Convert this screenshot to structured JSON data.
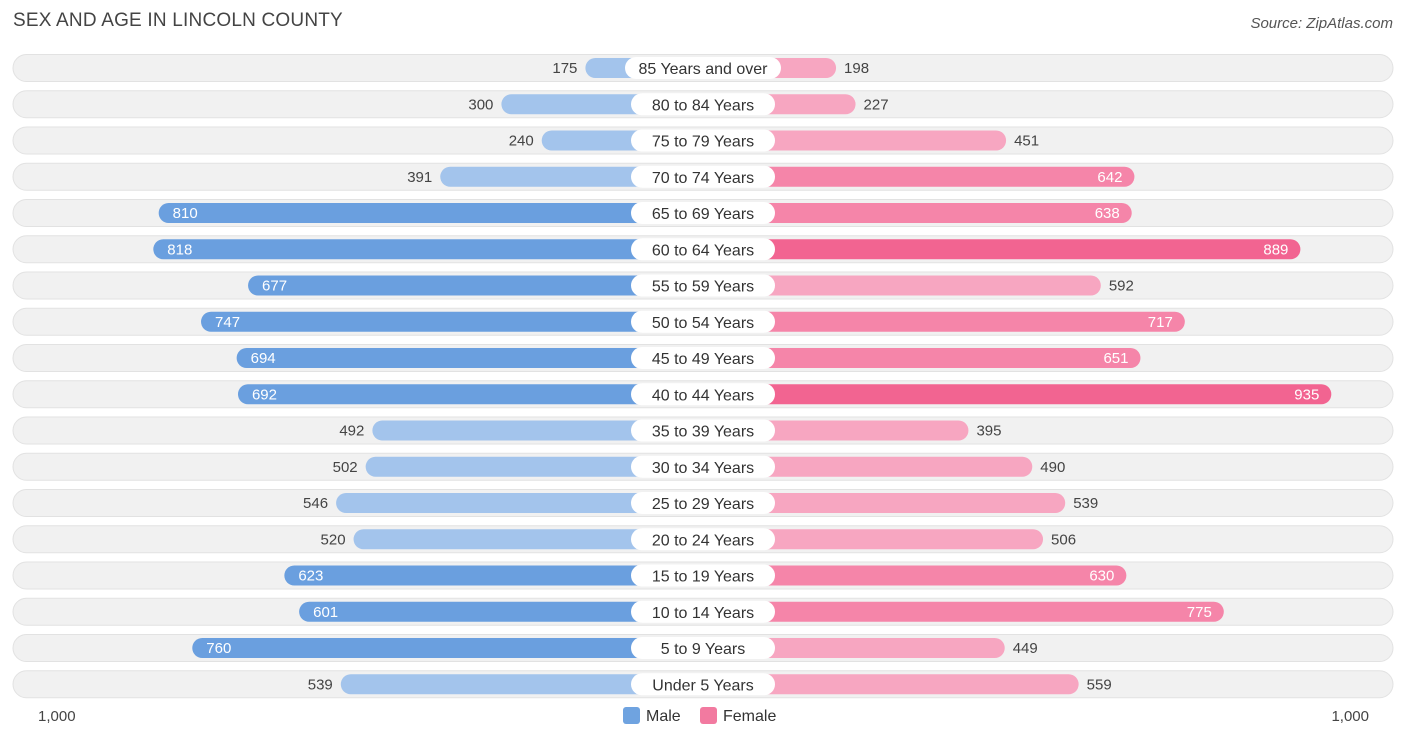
{
  "chart_data": {
    "type": "bar",
    "orientation": "horizontal-diverging",
    "title": "SEX AND AGE IN LINCOLN COUNTY",
    "source": "Source: ZipAtlas.com",
    "categories": [
      "85 Years and over",
      "80 to 84 Years",
      "75 to 79 Years",
      "70 to 74 Years",
      "65 to 69 Years",
      "60 to 64 Years",
      "55 to 59 Years",
      "50 to 54 Years",
      "45 to 49 Years",
      "40 to 44 Years",
      "35 to 39 Years",
      "30 to 34 Years",
      "25 to 29 Years",
      "20 to 24 Years",
      "15 to 19 Years",
      "10 to 14 Years",
      "5 to 9 Years",
      "Under 5 Years"
    ],
    "series": [
      {
        "name": "Male",
        "color": "#6fa3e0",
        "values": [
          175,
          300,
          240,
          391,
          810,
          818,
          677,
          747,
          694,
          692,
          492,
          502,
          546,
          520,
          623,
          601,
          760,
          539
        ]
      },
      {
        "name": "Female",
        "color": "#f27aa0",
        "values": [
          198,
          227,
          451,
          642,
          638,
          889,
          592,
          717,
          651,
          935,
          395,
          490,
          539,
          506,
          630,
          775,
          449,
          559
        ]
      }
    ],
    "value_labels": {
      "Male": [
        "175",
        "300",
        "240",
        "391",
        "810",
        "818",
        "677",
        "747",
        "694",
        "692",
        "492",
        "502",
        "546",
        "520",
        "623",
        "601",
        "760",
        "539"
      ],
      "Female": [
        "198",
        "227",
        "451",
        "642",
        "638",
        "889",
        "592",
        "717",
        "651",
        "935",
        "395",
        "490",
        "539",
        "506",
        "630",
        "775",
        "449",
        "559"
      ]
    },
    "axis": {
      "left_label": "1,000",
      "right_label": "1,000",
      "max": 1000
    },
    "legend": {
      "position": "bottom-center",
      "items": [
        "Male",
        "Female"
      ]
    }
  }
}
